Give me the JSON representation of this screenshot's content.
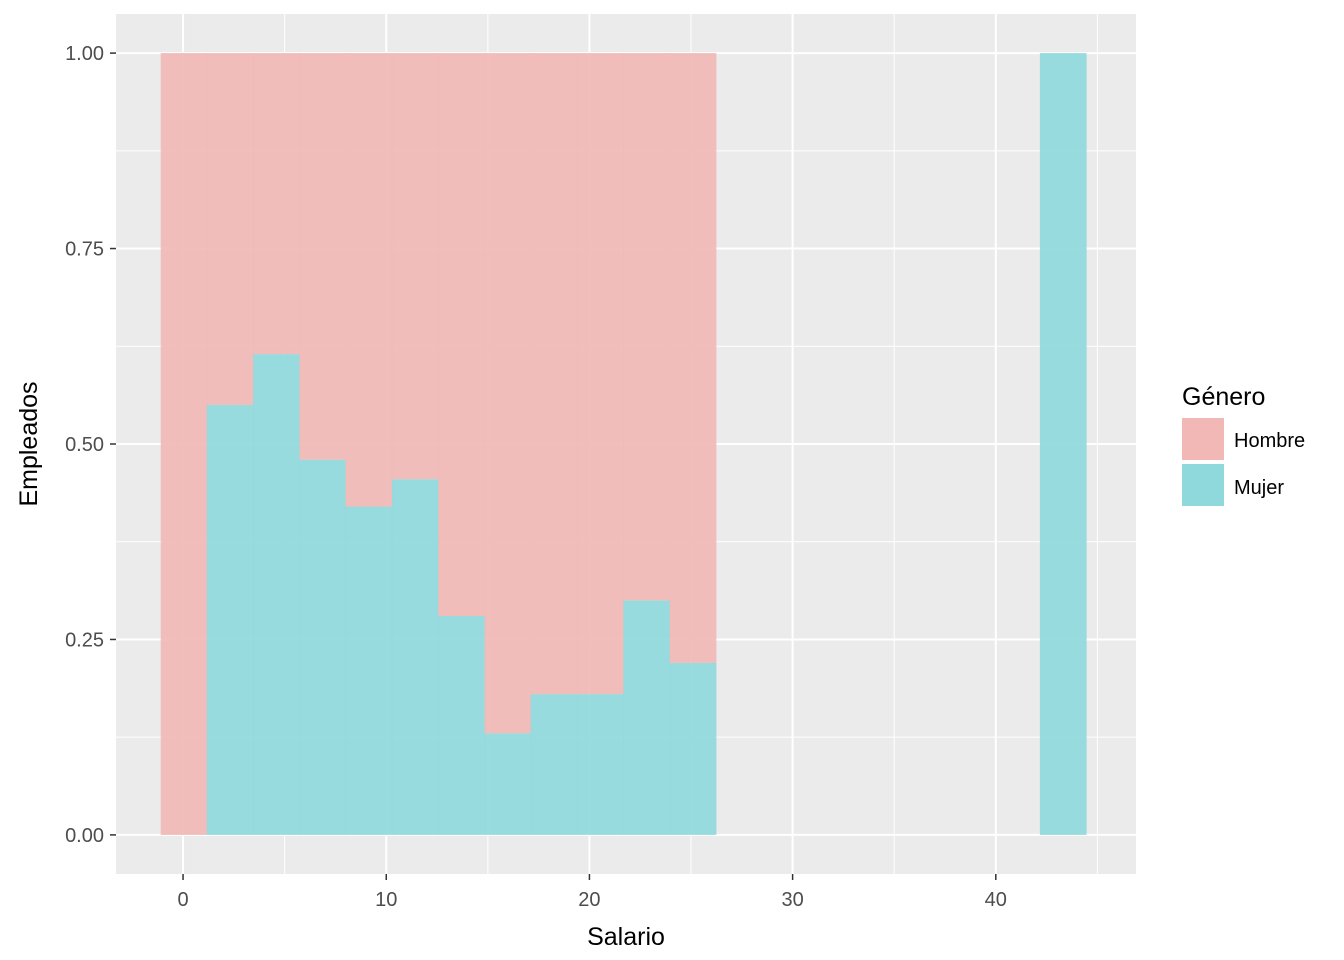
{
  "chart_data": {
    "type": "bar",
    "subtype": "filled-histogram",
    "xlabel": "Salario",
    "ylabel": "Empleados",
    "xlim": [
      -3.3,
      46.9
    ],
    "ylim": [
      -0.05,
      1.05
    ],
    "xticks": [
      0,
      10,
      20,
      30,
      40
    ],
    "xtick_labels": [
      "0",
      "10",
      "20",
      "30",
      "40"
    ],
    "yticks": [
      0,
      0.25,
      0.5,
      0.75,
      1.0
    ],
    "ytick_labels": [
      "0.00",
      "0.25",
      "0.50",
      "0.75",
      "1.00"
    ],
    "grid": true,
    "legend": {
      "title": "Género",
      "position": "right",
      "entries": [
        {
          "name": "Hombre",
          "color": "#f1b8b6"
        },
        {
          "name": "Mujer",
          "color": "#8fd9dc"
        }
      ]
    },
    "bin_edges": [
      -1.1,
      1.17,
      3.45,
      5.73,
      8.0,
      10.28,
      12.56,
      14.84,
      17.11,
      19.39,
      21.67,
      23.95,
      26.22,
      28.5,
      30.78,
      33.06,
      35.33,
      37.61,
      39.89,
      42.17,
      44.44
    ],
    "series": [
      {
        "name": "Hombre",
        "color": "#f1b8b6",
        "values": [
          1.0,
          0.45,
          0.385,
          0.52,
          0.58,
          0.545,
          0.72,
          0.87,
          0.82,
          0.82,
          0.7,
          0.78,
          0,
          0,
          0,
          0,
          0,
          0,
          0,
          0
        ]
      },
      {
        "name": "Mujer",
        "color": "#8fd9dc",
        "values": [
          0,
          0.55,
          0.615,
          0.48,
          0.42,
          0.455,
          0.28,
          0.13,
          0.18,
          0.18,
          0.3,
          0.22,
          0,
          0,
          0,
          0,
          0,
          0,
          0,
          1.0
        ]
      }
    ]
  }
}
